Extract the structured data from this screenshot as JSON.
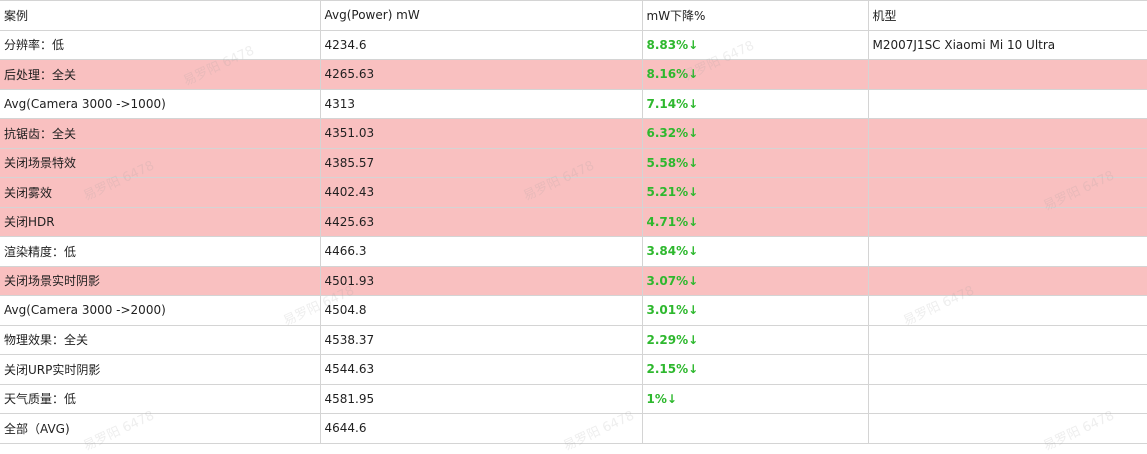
{
  "headers": [
    "案例",
    "Avg(Power) mW",
    "mW下降%",
    "机型"
  ],
  "rows": [
    {
      "case": "分辨率：低",
      "power": "4234.6",
      "drop": "8.83%↓",
      "model": "M2007J1SC Xiaomi Mi 10 Ultra",
      "highlight": false
    },
    {
      "case": "后处理：全关",
      "power": "4265.63",
      "drop": "8.16%↓",
      "model": "",
      "highlight": true
    },
    {
      "case": "Avg(Camera 3000 ->1000)",
      "power": "4313",
      "drop": "7.14%↓",
      "model": "",
      "highlight": false
    },
    {
      "case": "抗锯齿：全关",
      "power": "4351.03",
      "drop": "6.32%↓",
      "model": "",
      "highlight": true
    },
    {
      "case": "关闭场景特效",
      "power": "4385.57",
      "drop": "5.58%↓",
      "model": "",
      "highlight": true
    },
    {
      "case": "关闭雾效",
      "power": "4402.43",
      "drop": "5.21%↓",
      "model": "",
      "highlight": true
    },
    {
      "case": "关闭HDR",
      "power": "4425.63",
      "drop": "4.71%↓",
      "model": "",
      "highlight": true
    },
    {
      "case": "渲染精度：低",
      "power": "4466.3",
      "drop": "3.84%↓",
      "model": "",
      "highlight": false
    },
    {
      "case": "关闭场景实时阴影",
      "power": "4501.93",
      "drop": "3.07%↓",
      "model": "",
      "highlight": true
    },
    {
      "case": "Avg(Camera 3000 ->2000)",
      "power": "4504.8",
      "drop": "3.01%↓",
      "model": "",
      "highlight": false
    },
    {
      "case": "物理效果：全关",
      "power": "4538.37",
      "drop": "2.29%↓",
      "model": "",
      "highlight": false
    },
    {
      "case": "关闭URP实时阴影",
      "power": "4544.63",
      "drop": "2.15%↓",
      "model": "",
      "highlight": false
    },
    {
      "case": "天气质量：低",
      "power": "4581.95",
      "drop": "1%↓",
      "model": "",
      "highlight": false
    },
    {
      "case": "全部（AVG)",
      "power": "4644.6",
      "drop": "",
      "model": "",
      "highlight": false
    }
  ],
  "watermark": "易罗阳 6478",
  "colors": {
    "highlight": "#f9c0c0",
    "drop_text": "#2eb82e",
    "border": "#d4d4d4"
  }
}
